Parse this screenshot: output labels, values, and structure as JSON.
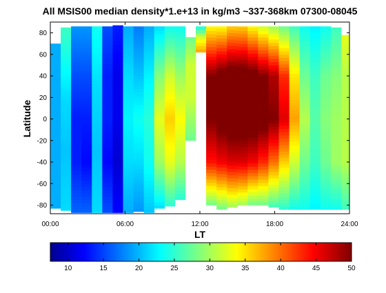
{
  "chart_data": {
    "type": "heatmap",
    "title": "All MSIS00 median density*1.e+13 in kg/m3 ~337-368km 07300-08045",
    "xlabel": "LT",
    "ylabel": "Latitude",
    "xlim": [
      0,
      24
    ],
    "ylim": [
      -88,
      90
    ],
    "x_ticks": [
      {
        "value": 0,
        "label": "00:00"
      },
      {
        "value": 6,
        "label": "06:00"
      },
      {
        "value": 12,
        "label": "12:00"
      },
      {
        "value": 18,
        "label": "18:00"
      },
      {
        "value": 24,
        "label": "24:00"
      }
    ],
    "y_ticks": [
      -80,
      -60,
      -40,
      -20,
      0,
      20,
      40,
      60,
      80
    ],
    "colorbar": {
      "range": [
        7.5,
        50
      ],
      "ticks": [
        10,
        15,
        20,
        25,
        30,
        35,
        40,
        45,
        50
      ],
      "colormap": "jet"
    },
    "lt_bin_width": 0.8333,
    "lat_bin_height": 3.0,
    "columns": [
      {
        "lt": 0.0,
        "lat_min": -83,
        "lat_max": 70,
        "values": [
          [
            -85,
            20
          ],
          [
            70,
            20
          ]
        ]
      },
      {
        "lt": 0.833,
        "lat_min": -85,
        "lat_max": 85,
        "values": [
          [
            -85,
            22
          ],
          [
            -30,
            21
          ],
          [
            20,
            22
          ],
          [
            85,
            26
          ]
        ]
      },
      {
        "lt": 1.667,
        "lat_min": -87,
        "lat_max": 86,
        "values": [
          [
            -87,
            17
          ],
          [
            -40,
            14
          ],
          [
            0,
            14
          ],
          [
            40,
            16
          ],
          [
            86,
            19
          ]
        ]
      },
      {
        "lt": 2.5,
        "lat_min": -87,
        "lat_max": 86,
        "values": [
          [
            -87,
            17
          ],
          [
            -40,
            13
          ],
          [
            0,
            14
          ],
          [
            40,
            16
          ],
          [
            86,
            19
          ]
        ]
      },
      {
        "lt": 3.333,
        "lat_min": -87,
        "lat_max": 86,
        "values": [
          [
            -87,
            22
          ],
          [
            -30,
            21
          ],
          [
            30,
            22
          ],
          [
            86,
            24
          ]
        ]
      },
      {
        "lt": 4.167,
        "lat_min": -87,
        "lat_max": 86,
        "values": [
          [
            -87,
            16
          ],
          [
            -40,
            13
          ],
          [
            0,
            14
          ],
          [
            40,
            14
          ],
          [
            86,
            16
          ]
        ]
      },
      {
        "lt": 5.0,
        "lat_min": -87,
        "lat_max": 87,
        "values": [
          [
            -87,
            13
          ],
          [
            -40,
            11
          ],
          [
            0,
            12
          ],
          [
            40,
            12
          ],
          [
            87,
            14
          ]
        ]
      },
      {
        "lt": 5.833,
        "lat_min": -87,
        "lat_max": 86,
        "values": [
          [
            -87,
            20
          ],
          [
            -40,
            22
          ],
          [
            0,
            23
          ],
          [
            40,
            22
          ],
          [
            86,
            20
          ]
        ]
      },
      {
        "lt": 6.667,
        "lat_min": -86,
        "lat_max": 86,
        "values": [
          [
            -86,
            19
          ],
          [
            -40,
            22
          ],
          [
            0,
            24
          ],
          [
            40,
            21
          ],
          [
            86,
            18
          ]
        ]
      },
      {
        "lt": 7.5,
        "lat_min": -87,
        "lat_max": 86,
        "values": [
          [
            -87,
            21
          ],
          [
            -40,
            24
          ],
          [
            0,
            25
          ],
          [
            40,
            23
          ],
          [
            86,
            20
          ]
        ]
      },
      {
        "lt": 8.333,
        "lat_min": -83,
        "lat_max": 86,
        "values": [
          [
            -83,
            22
          ],
          [
            -40,
            30
          ],
          [
            0,
            33
          ],
          [
            40,
            29
          ],
          [
            86,
            22
          ]
        ]
      },
      {
        "lt": 9.167,
        "lat_min": -81,
        "lat_max": 86,
        "values": [
          [
            -81,
            25
          ],
          [
            -40,
            33
          ],
          [
            0,
            36
          ],
          [
            40,
            32
          ],
          [
            86,
            24
          ]
        ]
      },
      {
        "lt": 10.0,
        "lat_min": -75,
        "lat_max": 86,
        "values": [
          [
            -75,
            25
          ],
          [
            -40,
            31
          ],
          [
            0,
            34
          ],
          [
            40,
            30
          ],
          [
            86,
            24
          ]
        ]
      },
      {
        "lt": 10.833,
        "lat_min": -20,
        "lat_max": 76,
        "values": [
          [
            -20,
            28
          ],
          [
            20,
            32
          ],
          [
            50,
            32
          ],
          [
            76,
            28
          ]
        ]
      },
      {
        "lt": 11.667,
        "lat_min": 62,
        "lat_max": 86,
        "values": [
          [
            62,
            38
          ],
          [
            75,
            33
          ],
          [
            86,
            24
          ]
        ]
      },
      {
        "lt": 12.5,
        "lat_min": -80,
        "lat_max": 86,
        "values": [
          [
            -80,
            28
          ],
          [
            -40,
            44
          ],
          [
            0,
            50
          ],
          [
            40,
            50
          ],
          [
            86,
            34
          ]
        ]
      },
      {
        "lt": 13.333,
        "lat_min": -84,
        "lat_max": 86,
        "values": [
          [
            -84,
            28
          ],
          [
            -40,
            45
          ],
          [
            0,
            52
          ],
          [
            40,
            52
          ],
          [
            86,
            34
          ]
        ]
      },
      {
        "lt": 14.167,
        "lat_min": -82,
        "lat_max": 86,
        "values": [
          [
            -82,
            30
          ],
          [
            -40,
            46
          ],
          [
            0,
            53
          ],
          [
            40,
            53
          ],
          [
            86,
            36
          ]
        ]
      },
      {
        "lt": 15.0,
        "lat_min": -80,
        "lat_max": 86,
        "values": [
          [
            -80,
            30
          ],
          [
            -40,
            46
          ],
          [
            0,
            53
          ],
          [
            40,
            53
          ],
          [
            86,
            36
          ]
        ]
      },
      {
        "lt": 15.833,
        "lat_min": -80,
        "lat_max": 86,
        "values": [
          [
            -80,
            28
          ],
          [
            -40,
            45
          ],
          [
            0,
            53
          ],
          [
            40,
            52
          ],
          [
            86,
            34
          ]
        ]
      },
      {
        "lt": 16.667,
        "lat_min": -80,
        "lat_max": 86,
        "values": [
          [
            -80,
            28
          ],
          [
            -40,
            43
          ],
          [
            0,
            52
          ],
          [
            40,
            50
          ],
          [
            86,
            32
          ]
        ]
      },
      {
        "lt": 17.5,
        "lat_min": -82,
        "lat_max": 86,
        "values": [
          [
            -82,
            26
          ],
          [
            -40,
            40
          ],
          [
            0,
            50
          ],
          [
            40,
            48
          ],
          [
            86,
            30
          ]
        ]
      },
      {
        "lt": 18.333,
        "lat_min": -84,
        "lat_max": 86,
        "values": [
          [
            -84,
            25
          ],
          [
            -40,
            36
          ],
          [
            0,
            46
          ],
          [
            40,
            43
          ],
          [
            86,
            28
          ]
        ]
      },
      {
        "lt": 19.167,
        "lat_min": -84,
        "lat_max": 86,
        "values": [
          [
            -84,
            24
          ],
          [
            -40,
            32
          ],
          [
            0,
            38
          ],
          [
            40,
            35
          ],
          [
            86,
            26
          ]
        ]
      },
      {
        "lt": 20.0,
        "lat_min": -84,
        "lat_max": 86,
        "values": [
          [
            -84,
            24
          ],
          [
            -40,
            28
          ],
          [
            0,
            31
          ],
          [
            40,
            28
          ],
          [
            86,
            24
          ]
        ]
      },
      {
        "lt": 20.833,
        "lat_min": -84,
        "lat_max": 86,
        "values": [
          [
            -84,
            23
          ],
          [
            -40,
            26
          ],
          [
            0,
            27
          ],
          [
            40,
            26
          ],
          [
            86,
            23
          ]
        ]
      },
      {
        "lt": 21.667,
        "lat_min": -84,
        "lat_max": 86,
        "values": [
          [
            -84,
            24
          ],
          [
            -40,
            28
          ],
          [
            0,
            29
          ],
          [
            40,
            28
          ],
          [
            86,
            24
          ]
        ]
      },
      {
        "lt": 22.5,
        "lat_min": -84,
        "lat_max": 85,
        "values": [
          [
            -84,
            24
          ],
          [
            -40,
            30
          ],
          [
            0,
            30
          ],
          [
            40,
            29
          ],
          [
            85,
            26
          ]
        ]
      },
      {
        "lt": 23.333,
        "lat_min": -84,
        "lat_max": 78,
        "values": [
          [
            -84,
            26
          ],
          [
            -40,
            31
          ],
          [
            0,
            31
          ],
          [
            40,
            31
          ],
          [
            78,
            33
          ]
        ]
      }
    ]
  }
}
